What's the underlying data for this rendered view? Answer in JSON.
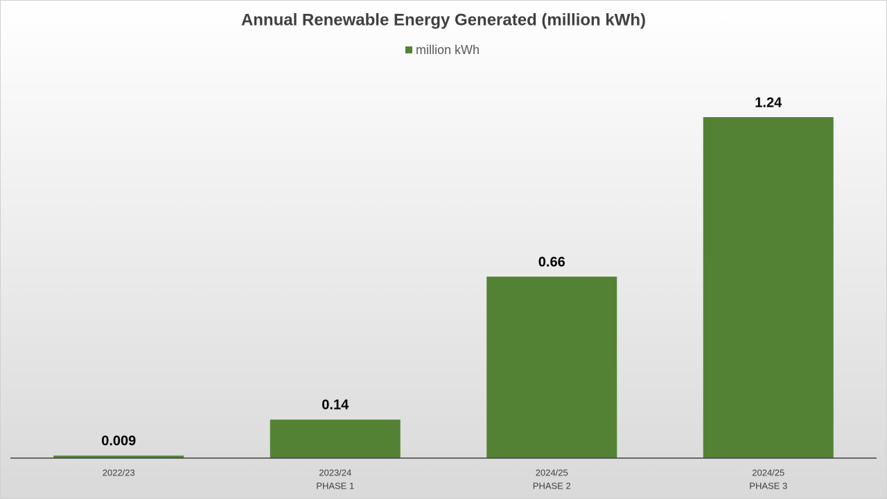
{
  "chart_data": {
    "type": "bar",
    "title": "Annual Renewable Energy Generated (million kWh)",
    "categories": [
      [
        "2022/23"
      ],
      [
        "2023/24",
        "PHASE 1"
      ],
      [
        "2024/25",
        "PHASE 2"
      ],
      [
        "2024/25",
        "PHASE 3"
      ]
    ],
    "series": [
      {
        "name": "million kWh",
        "color": "#548235",
        "values": [
          0.009,
          0.14,
          0.66,
          1.24
        ]
      }
    ],
    "legend": "top"
  }
}
